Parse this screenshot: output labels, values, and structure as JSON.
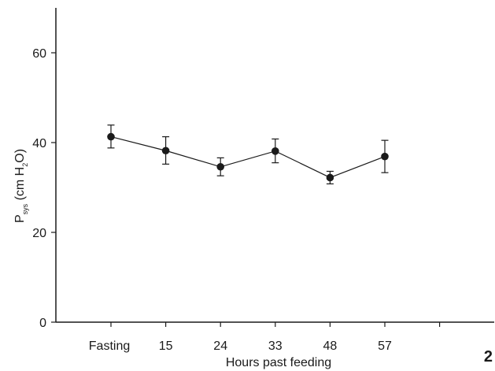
{
  "chart_data": {
    "type": "line",
    "categories": [
      "Fasting",
      "15",
      "24",
      "33",
      "48",
      "57"
    ],
    "series": [
      {
        "values": [
          41.3,
          38.2,
          34.6,
          38.1,
          32.2,
          36.9
        ],
        "error_low": [
          38.8,
          35.2,
          32.6,
          35.5,
          30.8,
          33.3
        ],
        "error_high": [
          43.9,
          41.3,
          36.6,
          40.8,
          33.6,
          40.5
        ]
      }
    ],
    "xlabel": "Hours past feeding",
    "ylabel": {
      "main": "P",
      "main_sub": "sys",
      "unit_open": " (cm H",
      "unit_sub": "2",
      "unit_close": "O)"
    },
    "ylim": [
      0,
      70
    ],
    "yticks": [
      0,
      20,
      40,
      60
    ],
    "grid": false,
    "legend": "none",
    "marker_color": "#1a1a1a",
    "line_color": "#1a1a1a"
  },
  "panel_label": "2"
}
